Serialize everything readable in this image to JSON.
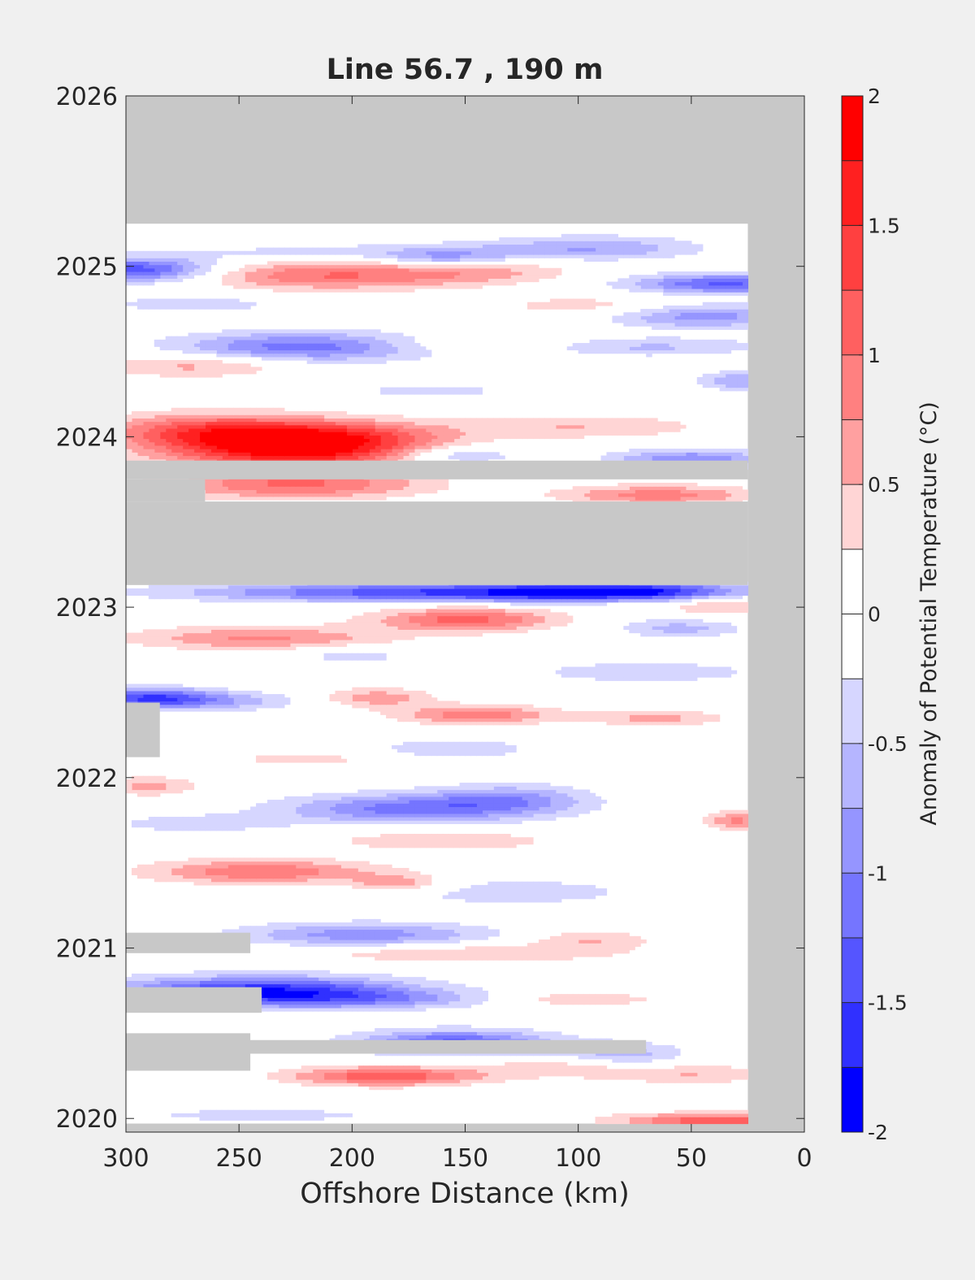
{
  "chart_data": {
    "type": "heatmap",
    "title": "Line 56.7 , 190 m",
    "xlabel": "Offshore Distance (km)",
    "colorbar_label": "Anomaly of Potential Temperature (°C)",
    "xlim": [
      300,
      0
    ],
    "x_reversed": true,
    "ylim": [
      2019.92,
      2026
    ],
    "x_ticks": [
      300,
      250,
      200,
      150,
      100,
      50,
      0
    ],
    "x_tick_labels": [
      "300",
      "250",
      "200",
      "150",
      "100",
      "50",
      "0"
    ],
    "y_ticks": [
      2020,
      2021,
      2022,
      2023,
      2024,
      2025,
      2026
    ],
    "y_tick_labels": [
      "2020",
      "2021",
      "2022",
      "2023",
      "2024",
      "2025",
      "2026"
    ],
    "colorbar_ticks": [
      2,
      1.5,
      1,
      0.5,
      0,
      -0.5,
      -1,
      -1.5,
      -2
    ],
    "colorbar_tick_labels": [
      "2",
      "1.5",
      "1",
      "0.5",
      "0",
      "-0.5",
      "-1",
      "-1.5",
      "-2"
    ],
    "color_levels": [
      {
        "min": 1.75,
        "max": 2.0,
        "color": "#ff0000"
      },
      {
        "min": 1.5,
        "max": 1.75,
        "color": "#ff2020"
      },
      {
        "min": 1.25,
        "max": 1.5,
        "color": "#ff4040"
      },
      {
        "min": 1.0,
        "max": 1.25,
        "color": "#ff6060"
      },
      {
        "min": 0.75,
        "max": 1.0,
        "color": "#ff8080"
      },
      {
        "min": 0.5,
        "max": 0.75,
        "color": "#ffa0a0"
      },
      {
        "min": 0.25,
        "max": 0.5,
        "color": "#ffd5d5"
      },
      {
        "min": 0.0,
        "max": 0.25,
        "color": "#ffffff"
      },
      {
        "min": -0.25,
        "max": 0.0,
        "color": "#ffffff"
      },
      {
        "min": -0.5,
        "max": -0.25,
        "color": "#d6d6ff"
      },
      {
        "min": -0.75,
        "max": -0.5,
        "color": "#b5b5ff"
      },
      {
        "min": -1.0,
        "max": -0.75,
        "color": "#9595ff"
      },
      {
        "min": -1.25,
        "max": -1.0,
        "color": "#7575ff"
      },
      {
        "min": -1.5,
        "max": -1.25,
        "color": "#5555ff"
      },
      {
        "min": -1.75,
        "max": -1.5,
        "color": "#3030ff"
      },
      {
        "min": -2.0,
        "max": -1.75,
        "color": "#0000ff"
      }
    ],
    "no_data_color": "#c8c8c8",
    "data_extent": {
      "x_min": 25,
      "x_max": 300,
      "y_min": 2019.97,
      "y_max": 2025.25
    },
    "gaps": [
      {
        "x0": 25,
        "x1": 300,
        "y0": 2023.13,
        "y1": 2023.62
      },
      {
        "x0": 25,
        "x1": 300,
        "y0": 2023.75,
        "y1": 2023.86
      },
      {
        "x0": 265,
        "x1": 300,
        "y0": 2023.62,
        "y1": 2023.75
      },
      {
        "x0": 285,
        "x1": 300,
        "y0": 2022.12,
        "y1": 2022.44
      },
      {
        "x0": 245,
        "x1": 300,
        "y0": 2020.97,
        "y1": 2021.09
      },
      {
        "x0": 240,
        "x1": 300,
        "y0": 2020.62,
        "y1": 2020.77
      },
      {
        "x0": 70,
        "x1": 300,
        "y0": 2020.38,
        "y1": 2020.46
      },
      {
        "x0": 245,
        "x1": 300,
        "y0": 2020.28,
        "y1": 2020.5
      }
    ],
    "anomaly_features": [
      {
        "x": 225,
        "y": 2023.93,
        "sx": 40,
        "sy": 0.08,
        "v": 1.9
      },
      {
        "x": 260,
        "y": 2024.04,
        "sx": 35,
        "sy": 0.07,
        "v": 1.2
      },
      {
        "x": 200,
        "y": 2024.02,
        "sx": 30,
        "sy": 0.06,
        "v": 0.6
      },
      {
        "x": 225,
        "y": 2023.72,
        "sx": 40,
        "sy": 0.06,
        "v": 1.0
      },
      {
        "x": 65,
        "y": 2023.66,
        "sx": 30,
        "sy": 0.04,
        "v": 0.9
      },
      {
        "x": 100,
        "y": 2024.06,
        "sx": 40,
        "sy": 0.05,
        "v": 0.5
      },
      {
        "x": 155,
        "y": 2023.89,
        "sx": 20,
        "sy": 0.04,
        "v": -0.7
      },
      {
        "x": 50,
        "y": 2023.87,
        "sx": 25,
        "sy": 0.04,
        "v": -1.0
      },
      {
        "x": 160,
        "y": 2023.09,
        "sx": 75,
        "sy": 0.04,
        "v": -1.5
      },
      {
        "x": 80,
        "y": 2023.09,
        "sx": 35,
        "sy": 0.04,
        "v": -1.6
      },
      {
        "x": 150,
        "y": 2022.93,
        "sx": 28,
        "sy": 0.05,
        "v": 1.1
      },
      {
        "x": 240,
        "y": 2022.82,
        "sx": 40,
        "sy": 0.05,
        "v": 0.8
      },
      {
        "x": 80,
        "y": 2023.06,
        "sx": 20,
        "sy": 0.05,
        "v": 0.4
      },
      {
        "x": 37,
        "y": 2023.02,
        "sx": 16,
        "sy": 0.05,
        "v": 0.6
      },
      {
        "x": 55,
        "y": 2022.88,
        "sx": 20,
        "sy": 0.04,
        "v": -0.6
      },
      {
        "x": 200,
        "y": 2022.72,
        "sx": 20,
        "sy": 0.04,
        "v": -0.4
      },
      {
        "x": 70,
        "y": 2022.62,
        "sx": 35,
        "sy": 0.04,
        "v": -0.5
      },
      {
        "x": 290,
        "y": 2022.47,
        "sx": 20,
        "sy": 0.04,
        "v": -1.3
      },
      {
        "x": 260,
        "y": 2022.45,
        "sx": 30,
        "sy": 0.04,
        "v": -0.6
      },
      {
        "x": 190,
        "y": 2022.47,
        "sx": 18,
        "sy": 0.04,
        "v": 0.7
      },
      {
        "x": 145,
        "y": 2022.37,
        "sx": 25,
        "sy": 0.04,
        "v": 0.9
      },
      {
        "x": 65,
        "y": 2022.35,
        "sx": 22,
        "sy": 0.03,
        "v": 0.6
      },
      {
        "x": 155,
        "y": 2022.17,
        "sx": 30,
        "sy": 0.05,
        "v": -0.4
      },
      {
        "x": 220,
        "y": 2022.11,
        "sx": 25,
        "sy": 0.03,
        "v": 0.4
      },
      {
        "x": 175,
        "y": 2021.82,
        "sx": 40,
        "sy": 0.06,
        "v": -1.1
      },
      {
        "x": 130,
        "y": 2021.88,
        "sx": 25,
        "sy": 0.06,
        "v": -0.7
      },
      {
        "x": 270,
        "y": 2021.73,
        "sx": 30,
        "sy": 0.04,
        "v": -0.4
      },
      {
        "x": 290,
        "y": 2021.95,
        "sx": 15,
        "sy": 0.04,
        "v": 0.6
      },
      {
        "x": 30,
        "y": 2021.75,
        "sx": 10,
        "sy": 0.04,
        "v": 0.8
      },
      {
        "x": 160,
        "y": 2021.63,
        "sx": 35,
        "sy": 0.04,
        "v": 0.5
      },
      {
        "x": 240,
        "y": 2021.45,
        "sx": 35,
        "sy": 0.05,
        "v": 1.0
      },
      {
        "x": 180,
        "y": 2021.38,
        "sx": 15,
        "sy": 0.04,
        "v": 0.7
      },
      {
        "x": 130,
        "y": 2021.33,
        "sx": 45,
        "sy": 0.06,
        "v": -0.4
      },
      {
        "x": 195,
        "y": 2021.08,
        "sx": 40,
        "sy": 0.05,
        "v": -0.9
      },
      {
        "x": 95,
        "y": 2021.05,
        "sx": 20,
        "sy": 0.04,
        "v": 0.5
      },
      {
        "x": 150,
        "y": 2020.97,
        "sx": 50,
        "sy": 0.04,
        "v": 0.5
      },
      {
        "x": 240,
        "y": 2020.75,
        "sx": 45,
        "sy": 0.06,
        "v": -1.7
      },
      {
        "x": 190,
        "y": 2020.7,
        "sx": 40,
        "sy": 0.04,
        "v": -0.6
      },
      {
        "x": 100,
        "y": 2020.7,
        "sx": 25,
        "sy": 0.03,
        "v": 0.5
      },
      {
        "x": 155,
        "y": 2020.45,
        "sx": 30,
        "sy": 0.05,
        "v": -1.3
      },
      {
        "x": 80,
        "y": 2020.38,
        "sx": 20,
        "sy": 0.05,
        "v": -0.6
      },
      {
        "x": 185,
        "y": 2020.25,
        "sx": 30,
        "sy": 0.04,
        "v": 1.2
      },
      {
        "x": 110,
        "y": 2020.3,
        "sx": 25,
        "sy": 0.04,
        "v": 0.4
      },
      {
        "x": 50,
        "y": 2020.26,
        "sx": 30,
        "sy": 0.04,
        "v": 0.5
      },
      {
        "x": 40,
        "y": 2019.99,
        "sx": 30,
        "sy": 0.03,
        "v": 1.2
      },
      {
        "x": 240,
        "y": 2020.02,
        "sx": 40,
        "sy": 0.03,
        "v": -0.4
      },
      {
        "x": 295,
        "y": 2024.98,
        "sx": 25,
        "sy": 0.05,
        "v": -1.5
      },
      {
        "x": 210,
        "y": 2024.95,
        "sx": 45,
        "sy": 0.06,
        "v": 1.0
      },
      {
        "x": 140,
        "y": 2024.97,
        "sx": 30,
        "sy": 0.05,
        "v": 0.4
      },
      {
        "x": 200,
        "y": 2025.08,
        "sx": 60,
        "sy": 0.04,
        "v": -0.4
      },
      {
        "x": 95,
        "y": 2025.11,
        "sx": 35,
        "sy": 0.05,
        "v": -0.7
      },
      {
        "x": 160,
        "y": 2025.05,
        "sx": 18,
        "sy": 0.04,
        "v": -0.6
      },
      {
        "x": 35,
        "y": 2024.9,
        "sx": 30,
        "sy": 0.04,
        "v": -1.3
      },
      {
        "x": 45,
        "y": 2024.71,
        "sx": 28,
        "sy": 0.05,
        "v": -0.9
      },
      {
        "x": 95,
        "y": 2024.77,
        "sx": 30,
        "sy": 0.04,
        "v": 0.4
      },
      {
        "x": 270,
        "y": 2024.78,
        "sx": 30,
        "sy": 0.04,
        "v": -0.4
      },
      {
        "x": 220,
        "y": 2024.53,
        "sx": 40,
        "sy": 0.06,
        "v": -1.2
      },
      {
        "x": 145,
        "y": 2024.54,
        "sx": 40,
        "sy": 0.04,
        "v": 0.4
      },
      {
        "x": 75,
        "y": 2024.53,
        "sx": 40,
        "sy": 0.04,
        "v": -0.6
      },
      {
        "x": 270,
        "y": 2024.42,
        "sx": 30,
        "sy": 0.05,
        "v": 0.6
      },
      {
        "x": 165,
        "y": 2024.27,
        "sx": 25,
        "sy": 0.03,
        "v": -0.4
      },
      {
        "x": 30,
        "y": 2024.33,
        "sx": 12,
        "sy": 0.04,
        "v": -0.7
      }
    ]
  }
}
